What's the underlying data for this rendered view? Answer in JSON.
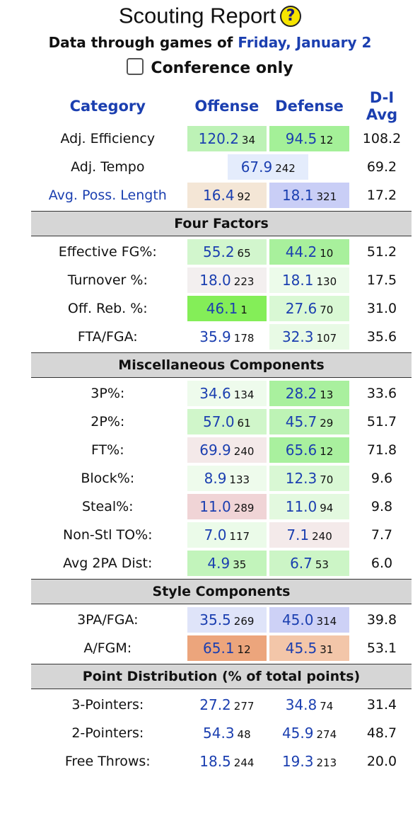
{
  "header": {
    "title": "Scouting Report",
    "help_icon": "question-icon",
    "subtitle_prefix": "Data through games of",
    "subtitle_date": "Friday, January 2",
    "conference_label": "Conference only"
  },
  "columns": {
    "category": "Category",
    "offense": "Offense",
    "defense": "Defense",
    "avg": "D-I Avg"
  },
  "top_rows": [
    {
      "label": "Adj. Efficiency",
      "off": "120.2",
      "off_rank": "34",
      "off_bg": "#bdf2b6",
      "def": "94.5",
      "def_rank": "12",
      "def_bg": "#a4f098",
      "avg": "108.2"
    },
    {
      "label": "Adj. Tempo",
      "tempo": "67.9",
      "tempo_rank": "242",
      "tempo_bg": "#e4ecfc",
      "avg": "69.2"
    },
    {
      "label": "Avg. Poss. Length",
      "off": "16.4",
      "off_rank": "92",
      "off_bg": "#f4e6d6",
      "def": "18.1",
      "def_rank": "321",
      "def_bg": "#c9cef6",
      "avg": "17.2",
      "link": true
    }
  ],
  "sections": [
    {
      "title": "Four Factors",
      "rows": [
        {
          "label": "Effective FG%:",
          "off": "55.2",
          "off_rank": "65",
          "off_bg": "#d2f6cd",
          "def": "44.2",
          "def_rank": "10",
          "def_bg": "#a8f09c",
          "avg": "51.2"
        },
        {
          "label": "Turnover %:",
          "off": "18.0",
          "off_rank": "223",
          "off_bg": "#f3efef",
          "def": "18.1",
          "def_rank": "130",
          "def_bg": "#ecfbea",
          "avg": "17.5"
        },
        {
          "label": "Off. Reb. %:",
          "off": "46.1",
          "off_rank": "1",
          "off_bg": "#84ee58",
          "def": "27.6",
          "def_rank": "70",
          "def_bg": "#d9f8d4",
          "avg": "31.0"
        },
        {
          "label": "FTA/FGA:",
          "off": "35.9",
          "off_rank": "178",
          "off_bg": "#ffffff",
          "def": "32.3",
          "def_rank": "107",
          "def_bg": "#e8fae5",
          "avg": "35.6"
        }
      ]
    },
    {
      "title": "Miscellaneous Components",
      "rows": [
        {
          "label": "3P%:",
          "off": "34.6",
          "off_rank": "134",
          "off_bg": "#eefbec",
          "def": "28.2",
          "def_rank": "13",
          "def_bg": "#a9f09e",
          "avg": "33.6"
        },
        {
          "label": "2P%:",
          "off": "57.0",
          "off_rank": "61",
          "off_bg": "#d0f6ca",
          "def": "45.7",
          "def_rank": "29",
          "def_bg": "#bdf3b5",
          "avg": "51.7"
        },
        {
          "label": "FT%:",
          "off": "69.9",
          "off_rank": "240",
          "off_bg": "#f4e9e9",
          "def": "65.6",
          "def_rank": "12",
          "def_bg": "#a9f09e",
          "avg": "71.8"
        },
        {
          "label": "Block%:",
          "off": "8.9",
          "off_rank": "133",
          "off_bg": "#eefbec",
          "def": "12.3",
          "def_rank": "70",
          "def_bg": "#d9f8d4",
          "avg": "9.6"
        },
        {
          "label": "Steal%:",
          "off": "11.0",
          "off_rank": "289",
          "off_bg": "#f0d4d6",
          "def": "11.0",
          "def_rank": "94",
          "def_bg": "#e3f9df",
          "avg": "9.8"
        },
        {
          "label": "Non-Stl TO%:",
          "off": "7.0",
          "off_rank": "117",
          "off_bg": "#ebfbe9",
          "def": "7.1",
          "def_rank": "240",
          "def_bg": "#f4eaea",
          "avg": "7.7"
        },
        {
          "label": "Avg 2PA Dist:",
          "off": "4.9",
          "off_rank": "35",
          "off_bg": "#c2f4bb",
          "def": "6.7",
          "def_rank": "53",
          "def_bg": "#ccf5c6",
          "avg": "6.0"
        }
      ]
    },
    {
      "title": "Style Components",
      "rows": [
        {
          "label": "3PA/FGA:",
          "off": "35.5",
          "off_rank": "269",
          "off_bg": "#dfe4f9",
          "def": "45.0",
          "def_rank": "314",
          "def_bg": "#cdd1f6",
          "avg": "39.8"
        },
        {
          "label": "A/FGM:",
          "off": "65.1",
          "off_rank": "12",
          "off_bg": "#eca57c",
          "def": "45.5",
          "def_rank": "31",
          "def_bg": "#f3c6a9",
          "avg": "53.1"
        }
      ]
    },
    {
      "title": "Point Distribution (% of total points)",
      "rows": [
        {
          "label": "3-Pointers:",
          "off": "27.2",
          "off_rank": "277",
          "off_bg": "#ffffff",
          "def": "34.8",
          "def_rank": "74",
          "def_bg": "#ffffff",
          "avg": "31.4"
        },
        {
          "label": "2-Pointers:",
          "off": "54.3",
          "off_rank": "48",
          "off_bg": "#ffffff",
          "def": "45.9",
          "def_rank": "274",
          "def_bg": "#ffffff",
          "avg": "48.7"
        },
        {
          "label": "Free Throws:",
          "off": "18.5",
          "off_rank": "244",
          "off_bg": "#ffffff",
          "def": "19.3",
          "def_rank": "213",
          "def_bg": "#ffffff",
          "avg": "20.0"
        }
      ]
    }
  ]
}
